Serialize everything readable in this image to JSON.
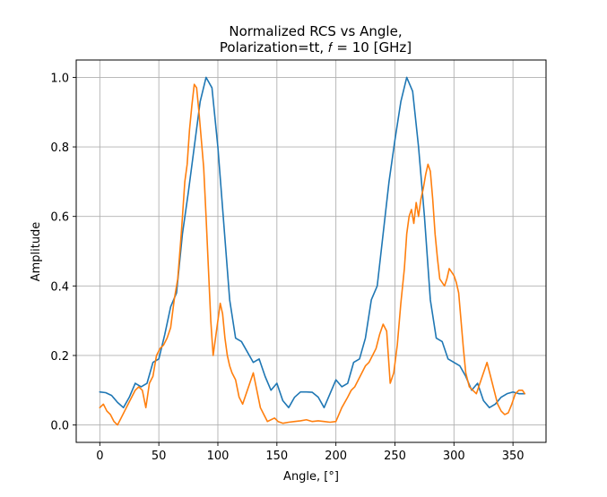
{
  "chart_data": {
    "type": "line",
    "title_line1": "Normalized RCS vs Angle,",
    "title_line2": "Polarization=tt, 𝑓 = 10 [GHz]",
    "xlabel": "Angle, [°]",
    "ylabel": "Amplitude",
    "xlim": [
      -20,
      378
    ],
    "ylim": [
      -0.05,
      1.05
    ],
    "xticks": [
      0,
      50,
      100,
      150,
      200,
      250,
      300,
      350
    ],
    "yticks": [
      0.0,
      0.2,
      0.4,
      0.6,
      0.8,
      1.0
    ],
    "ytick_labels": [
      "0.0",
      "0.2",
      "0.4",
      "0.6",
      "0.8",
      "1.0"
    ],
    "grid": true,
    "series": [
      {
        "color": "#1f77b4",
        "x": [
          0,
          5,
          10,
          15,
          20,
          25,
          30,
          35,
          40,
          45,
          50,
          55,
          60,
          65,
          70,
          75,
          80,
          85,
          90,
          95,
          100,
          105,
          110,
          115,
          120,
          125,
          130,
          135,
          140,
          145,
          150,
          155,
          160,
          165,
          170,
          175,
          180,
          185,
          190,
          195,
          200,
          205,
          210,
          215,
          220,
          225,
          230,
          235,
          240,
          245,
          250,
          255,
          260,
          265,
          270,
          275,
          280,
          285,
          290,
          295,
          300,
          305,
          310,
          315,
          320,
          325,
          330,
          335,
          340,
          345,
          350,
          355,
          360
        ],
        "y": [
          0.095,
          0.093,
          0.085,
          0.065,
          0.05,
          0.08,
          0.12,
          0.11,
          0.12,
          0.18,
          0.19,
          0.26,
          0.34,
          0.38,
          0.55,
          0.67,
          0.8,
          0.93,
          1.0,
          0.97,
          0.8,
          0.58,
          0.36,
          0.25,
          0.24,
          0.21,
          0.18,
          0.19,
          0.14,
          0.1,
          0.12,
          0.07,
          0.05,
          0.08,
          0.095,
          0.095,
          0.094,
          0.08,
          0.05,
          0.09,
          0.13,
          0.11,
          0.12,
          0.18,
          0.19,
          0.25,
          0.36,
          0.4,
          0.55,
          0.7,
          0.82,
          0.93,
          1.0,
          0.96,
          0.8,
          0.6,
          0.36,
          0.25,
          0.24,
          0.19,
          0.18,
          0.17,
          0.14,
          0.1,
          0.12,
          0.07,
          0.05,
          0.06,
          0.08,
          0.09,
          0.095,
          0.09,
          0.09
        ]
      },
      {
        "color": "#ff7f0e",
        "x": [
          0,
          3,
          6,
          9,
          12,
          15,
          18,
          21,
          24,
          27,
          30,
          33,
          36,
          39,
          42,
          45,
          48,
          51,
          54,
          57,
          60,
          63,
          66,
          69,
          72,
          74,
          76,
          78,
          80,
          82,
          84,
          86,
          88,
          90,
          92,
          94,
          96,
          98,
          100,
          102,
          104,
          106,
          108,
          110,
          112,
          115,
          118,
          121,
          124,
          127,
          130,
          133,
          136,
          139,
          142,
          145,
          148,
          151,
          155,
          160,
          165,
          170,
          175,
          180,
          185,
          190,
          195,
          200,
          205,
          210,
          213,
          216,
          219,
          222,
          225,
          228,
          231,
          234,
          237,
          240,
          243,
          246,
          249,
          252,
          255,
          258,
          260,
          262,
          264,
          266,
          268,
          270,
          272,
          274,
          276,
          278,
          280,
          282,
          284,
          286,
          288,
          290,
          292,
          294,
          296,
          298,
          300,
          302,
          304,
          306,
          308,
          310,
          313,
          316,
          319,
          322,
          325,
          328,
          331,
          334,
          337,
          340,
          343,
          346,
          349,
          352,
          355,
          358,
          360
        ],
        "y": [
          0.05,
          0.06,
          0.04,
          0.03,
          0.01,
          0.0,
          0.02,
          0.04,
          0.06,
          0.08,
          0.1,
          0.11,
          0.1,
          0.05,
          0.12,
          0.14,
          0.2,
          0.22,
          0.23,
          0.25,
          0.28,
          0.36,
          0.42,
          0.55,
          0.7,
          0.75,
          0.85,
          0.92,
          0.98,
          0.97,
          0.9,
          0.82,
          0.74,
          0.6,
          0.45,
          0.3,
          0.2,
          0.25,
          0.3,
          0.35,
          0.32,
          0.25,
          0.2,
          0.17,
          0.15,
          0.13,
          0.08,
          0.06,
          0.09,
          0.12,
          0.15,
          0.1,
          0.05,
          0.03,
          0.01,
          0.015,
          0.02,
          0.01,
          0.005,
          0.008,
          0.01,
          0.012,
          0.015,
          0.01,
          0.012,
          0.01,
          0.008,
          0.01,
          0.05,
          0.08,
          0.1,
          0.11,
          0.13,
          0.15,
          0.17,
          0.18,
          0.2,
          0.22,
          0.26,
          0.29,
          0.27,
          0.12,
          0.15,
          0.23,
          0.35,
          0.45,
          0.55,
          0.6,
          0.62,
          0.58,
          0.64,
          0.6,
          0.65,
          0.68,
          0.72,
          0.75,
          0.73,
          0.65,
          0.55,
          0.48,
          0.42,
          0.41,
          0.4,
          0.42,
          0.45,
          0.44,
          0.43,
          0.41,
          0.38,
          0.3,
          0.22,
          0.15,
          0.11,
          0.1,
          0.09,
          0.12,
          0.15,
          0.18,
          0.14,
          0.1,
          0.06,
          0.04,
          0.03,
          0.035,
          0.06,
          0.09,
          0.1,
          0.1,
          0.09
        ]
      }
    ]
  }
}
